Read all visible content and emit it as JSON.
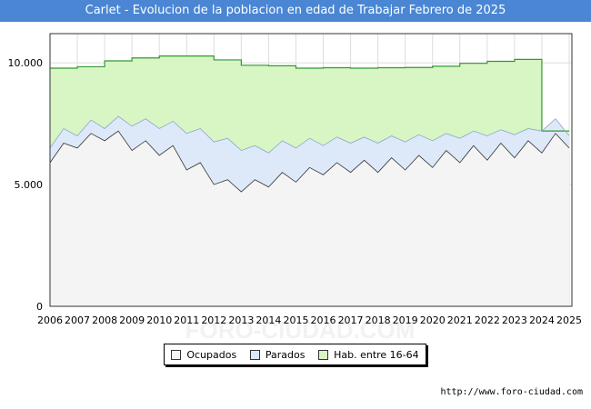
{
  "title": "Carlet - Evolucion de la poblacion en edad de Trabajar Febrero de 2025",
  "source": "http://www.foro-ciudad.com",
  "watermark": "FORO-CIUDAD.COM",
  "chart_data": {
    "type": "area",
    "x_ticks": [
      "2006",
      "2007",
      "2008",
      "2009",
      "2010",
      "2011",
      "2012",
      "2013",
      "2014",
      "2015",
      "2016",
      "2017",
      "2018",
      "2019",
      "2020",
      "2021",
      "2022",
      "2023",
      "2024",
      "2025"
    ],
    "y_ticks": [
      "0",
      "5.000",
      "10.000"
    ],
    "ylim": [
      0,
      11200
    ],
    "xlim": [
      2006,
      2025.1
    ],
    "grid": true,
    "legend_position": "bottom",
    "colors": {
      "ocupados_fill": "#f4f4f4",
      "parados_fill": "#dde9f8",
      "hab_fill": "#d8f5c4",
      "hab_line": "#339933",
      "line": "#333333"
    },
    "series": [
      {
        "name": "Hab. entre 16-64",
        "step": true,
        "x": [
          2006,
          2007,
          2008,
          2009,
          2010,
          2011,
          2012,
          2013,
          2014,
          2015,
          2016,
          2017,
          2018,
          2019,
          2020,
          2021,
          2022,
          2023,
          2024
        ],
        "values": [
          9780,
          9840,
          10080,
          10200,
          10280,
          10280,
          10120,
          9900,
          9880,
          9780,
          9800,
          9780,
          9800,
          9810,
          9860,
          9980,
          10060,
          10140,
          7200
        ]
      },
      {
        "name": "Parados",
        "x": [
          2006,
          2006.5,
          2007,
          2007.5,
          2008,
          2008.5,
          2009,
          2009.5,
          2010,
          2010.5,
          2011,
          2011.5,
          2012,
          2012.5,
          2013,
          2013.5,
          2014,
          2014.5,
          2015,
          2015.5,
          2016,
          2016.5,
          2017,
          2017.5,
          2018,
          2018.5,
          2019,
          2019.5,
          2020,
          2020.5,
          2021,
          2021.5,
          2022,
          2022.5,
          2023,
          2023.5,
          2024,
          2024.5,
          2025
        ],
        "values": [
          6500,
          7300,
          7000,
          7650,
          7300,
          7800,
          7400,
          7700,
          7300,
          7600,
          7100,
          7300,
          6750,
          6900,
          6400,
          6600,
          6300,
          6800,
          6500,
          6900,
          6600,
          6950,
          6700,
          6950,
          6700,
          7000,
          6750,
          7050,
          6800,
          7100,
          6900,
          7200,
          7000,
          7250,
          7050,
          7300,
          7200,
          7700,
          7000
        ]
      },
      {
        "name": "Ocupados",
        "x": [
          2006,
          2006.5,
          2007,
          2007.5,
          2008,
          2008.5,
          2009,
          2009.5,
          2010,
          2010.5,
          2011,
          2011.5,
          2012,
          2012.5,
          2013,
          2013.5,
          2014,
          2014.5,
          2015,
          2015.5,
          2016,
          2016.5,
          2017,
          2017.5,
          2018,
          2018.5,
          2019,
          2019.5,
          2020,
          2020.5,
          2021,
          2021.5,
          2022,
          2022.5,
          2023,
          2023.5,
          2024,
          2024.5,
          2025
        ],
        "values": [
          5900,
          6700,
          6500,
          7100,
          6800,
          7200,
          6400,
          6800,
          6200,
          6600,
          5600,
          5900,
          5000,
          5200,
          4700,
          5200,
          4900,
          5500,
          5100,
          5700,
          5400,
          5900,
          5500,
          6000,
          5500,
          6100,
          5600,
          6200,
          5700,
          6400,
          5900,
          6600,
          6000,
          6700,
          6100,
          6800,
          6300,
          7100,
          6500
        ]
      }
    ],
    "legend": [
      "Ocupados",
      "Parados",
      "Hab. entre 16-64"
    ]
  }
}
